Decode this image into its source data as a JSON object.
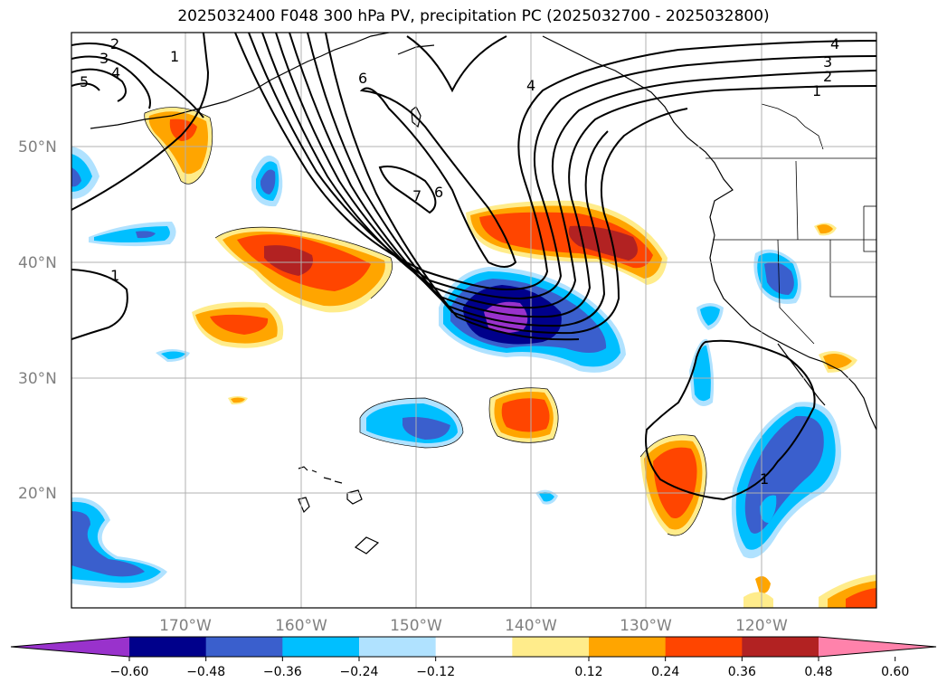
{
  "title": "2025032400 F048 300 hPa PV, precipitation PC (2025032700 - 2025032800)",
  "map": {
    "lat_labels": [
      "50°N",
      "40°N",
      "30°N",
      "20°N"
    ],
    "lon_labels": [
      "170°W",
      "160°W",
      "150°W",
      "140°W",
      "130°W",
      "120°W"
    ],
    "contour_labels": [
      "2",
      "3",
      "4",
      "5",
      "1",
      "6",
      "7",
      "6",
      "4",
      "4",
      "3",
      "2",
      "1",
      "1",
      "1"
    ]
  },
  "colorbar": {
    "ticks": [
      "−0.60",
      "−0.48",
      "−0.36",
      "−0.24",
      "−0.12",
      "0.12",
      "0.24",
      "0.36",
      "0.48",
      "0.60"
    ],
    "colors": [
      "#9932cc",
      "#00008b",
      "#3a5fcd",
      "#00bfff",
      "#b0e2ff",
      "#ffffff",
      "#ffec8b",
      "#ffa500",
      "#ff4500",
      "#b22222",
      "#ff82ab"
    ]
  }
}
